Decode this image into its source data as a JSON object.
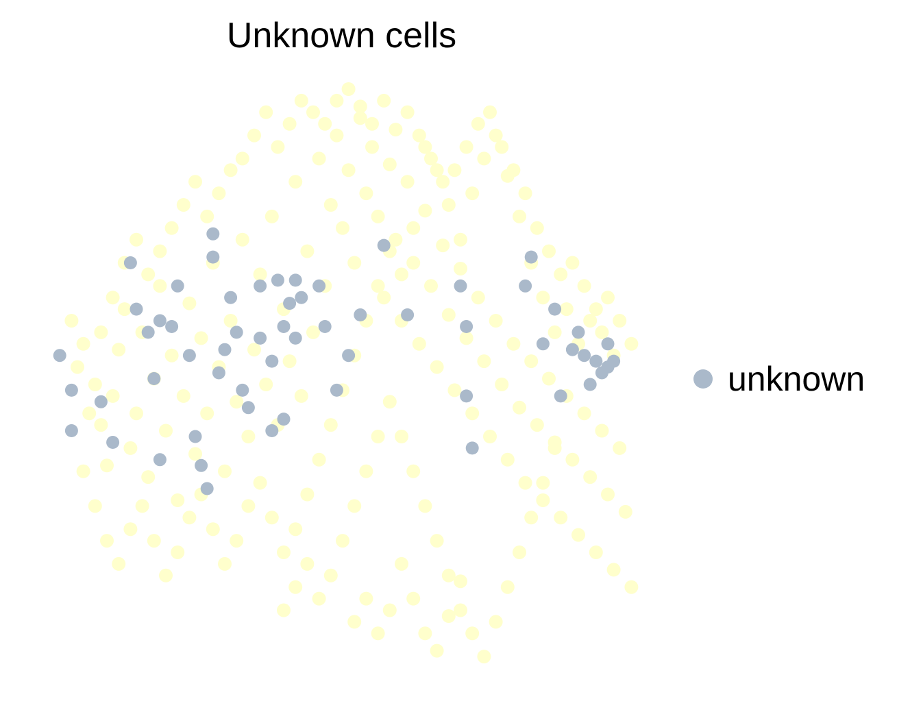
{
  "chart_data": {
    "type": "scatter",
    "title": "Unknown cells",
    "xlabel": "",
    "ylabel": "",
    "axes_visible": false,
    "grid": false,
    "legend_position": "right",
    "xlim": [
      0,
      100
    ],
    "ylim": [
      0,
      100
    ],
    "background": {
      "name": "",
      "color": "#ffffcc",
      "points": [
        [
          5,
          52
        ],
        [
          8,
          49
        ],
        [
          6,
          56
        ],
        [
          9,
          42
        ],
        [
          4,
          60
        ],
        [
          11,
          47
        ],
        [
          12,
          55
        ],
        [
          14,
          38
        ],
        [
          10,
          35
        ],
        [
          13,
          62
        ],
        [
          15,
          44
        ],
        [
          16,
          58
        ],
        [
          18,
          50
        ],
        [
          17,
          33
        ],
        [
          19,
          66
        ],
        [
          20,
          41
        ],
        [
          21,
          54
        ],
        [
          22,
          29
        ],
        [
          23,
          47
        ],
        [
          24,
          63
        ],
        [
          25,
          37
        ],
        [
          26,
          57
        ],
        [
          27,
          44
        ],
        [
          28,
          70
        ],
        [
          29,
          52
        ],
        [
          30,
          34
        ],
        [
          31,
          60
        ],
        [
          32,
          46
        ],
        [
          33,
          74
        ],
        [
          34,
          40
        ],
        [
          35,
          55
        ],
        [
          36,
          68
        ],
        [
          37,
          49
        ],
        [
          38,
          78
        ],
        [
          39,
          42
        ],
        [
          40,
          62
        ],
        [
          41,
          53
        ],
        [
          42,
          84
        ],
        [
          43,
          47
        ],
        [
          44,
          72
        ],
        [
          45,
          58
        ],
        [
          46,
          88
        ],
        [
          47,
          66
        ],
        [
          48,
          80
        ],
        [
          49,
          92
        ],
        [
          50,
          76
        ],
        [
          51,
          86
        ],
        [
          52,
          70
        ],
        [
          53,
          95
        ],
        [
          54,
          82
        ],
        [
          55,
          90
        ],
        [
          56,
          78
        ],
        [
          57,
          64
        ],
        [
          58,
          87
        ],
        [
          59,
          74
        ],
        [
          60,
          60
        ],
        [
          61,
          84
        ],
        [
          62,
          70
        ],
        [
          63,
          56
        ],
        [
          64,
          79
        ],
        [
          65,
          66
        ],
        [
          66,
          52
        ],
        [
          67,
          73
        ],
        [
          68,
          61
        ],
        [
          69,
          48
        ],
        [
          70,
          69
        ],
        [
          71,
          57
        ],
        [
          72,
          44
        ],
        [
          73,
          64
        ],
        [
          74,
          53
        ],
        [
          75,
          40
        ],
        [
          76,
          60
        ],
        [
          77,
          49
        ],
        [
          78,
          36
        ],
        [
          79,
          56
        ],
        [
          80,
          45
        ],
        [
          81,
          32
        ],
        [
          82,
          53
        ],
        [
          83,
          42
        ],
        [
          84,
          29
        ],
        [
          85,
          50
        ],
        [
          86,
          39
        ],
        [
          87,
          26
        ],
        [
          88,
          47
        ],
        [
          89,
          36
        ],
        [
          90,
          23
        ],
        [
          91,
          44
        ],
        [
          92,
          33
        ],
        [
          93,
          20
        ],
        [
          94,
          41
        ],
        [
          95,
          30
        ],
        [
          96,
          17
        ],
        [
          97,
          38
        ],
        [
          98,
          27
        ],
        [
          99,
          14
        ],
        [
          72,
          82
        ],
        [
          74,
          88
        ],
        [
          76,
          92
        ],
        [
          78,
          85
        ],
        [
          80,
          78
        ],
        [
          82,
          70
        ],
        [
          84,
          64
        ],
        [
          86,
          58
        ],
        [
          88,
          62
        ],
        [
          90,
          56
        ],
        [
          92,
          60
        ],
        [
          94,
          58
        ],
        [
          96,
          54
        ],
        [
          70,
          74
        ],
        [
          68,
          80
        ],
        [
          66,
          86
        ],
        [
          64,
          90
        ],
        [
          62,
          76
        ],
        [
          60,
          68
        ],
        [
          58,
          72
        ],
        [
          56,
          66
        ],
        [
          54,
          60
        ],
        [
          52,
          54
        ],
        [
          50,
          48
        ],
        [
          48,
          42
        ],
        [
          46,
          36
        ],
        [
          44,
          30
        ],
        [
          42,
          24
        ],
        [
          40,
          20
        ],
        [
          38,
          26
        ],
        [
          36,
          32
        ],
        [
          34,
          28
        ],
        [
          32,
          22
        ],
        [
          30,
          18
        ],
        [
          28,
          24
        ],
        [
          26,
          30
        ],
        [
          24,
          26
        ],
        [
          22,
          20
        ],
        [
          20,
          16
        ],
        [
          18,
          22
        ],
        [
          16,
          28
        ],
        [
          14,
          24
        ],
        [
          12,
          18
        ],
        [
          10,
          22
        ],
        [
          8,
          28
        ],
        [
          6,
          34
        ],
        [
          7,
          44
        ],
        [
          9,
          58
        ],
        [
          11,
          64
        ],
        [
          13,
          70
        ],
        [
          15,
          74
        ],
        [
          17,
          68
        ],
        [
          19,
          72
        ],
        [
          21,
          76
        ],
        [
          23,
          80
        ],
        [
          25,
          84
        ],
        [
          27,
          78
        ],
        [
          29,
          82
        ],
        [
          31,
          86
        ],
        [
          33,
          88
        ],
        [
          35,
          92
        ],
        [
          37,
          96
        ],
        [
          39,
          90
        ],
        [
          41,
          94
        ],
        [
          43,
          98
        ],
        [
          45,
          96
        ],
        [
          47,
          94
        ],
        [
          49,
          98
        ],
        [
          51,
          100
        ],
        [
          53,
          97
        ],
        [
          55,
          94
        ],
        [
          57,
          98
        ],
        [
          59,
          93
        ],
        [
          61,
          96
        ],
        [
          63,
          92
        ],
        [
          65,
          88
        ],
        [
          67,
          84
        ],
        [
          69,
          86
        ],
        [
          71,
          90
        ],
        [
          73,
          94
        ],
        [
          75,
          96
        ],
        [
          77,
          90
        ],
        [
          79,
          86
        ],
        [
          81,
          82
        ],
        [
          83,
          76
        ],
        [
          85,
          72
        ],
        [
          87,
          68
        ],
        [
          89,
          70
        ],
        [
          91,
          66
        ],
        [
          93,
          62
        ],
        [
          95,
          64
        ],
        [
          97,
          60
        ],
        [
          99,
          56
        ],
        [
          60,
          40
        ],
        [
          62,
          34
        ],
        [
          64,
          28
        ],
        [
          66,
          22
        ],
        [
          68,
          16
        ],
        [
          70,
          10
        ],
        [
          72,
          6
        ],
        [
          74,
          2
        ],
        [
          76,
          8
        ],
        [
          78,
          14
        ],
        [
          80,
          20
        ],
        [
          82,
          26
        ],
        [
          84,
          32
        ],
        [
          86,
          38
        ],
        [
          58,
          46
        ],
        [
          56,
          40
        ],
        [
          54,
          34
        ],
        [
          52,
          28
        ],
        [
          50,
          22
        ],
        [
          48,
          16
        ],
        [
          46,
          12
        ],
        [
          44,
          18
        ],
        [
          42,
          14
        ],
        [
          40,
          10
        ],
        [
          60,
          18
        ],
        [
          62,
          12
        ],
        [
          64,
          6
        ],
        [
          66,
          3
        ],
        [
          68,
          9
        ],
        [
          70,
          15
        ],
        [
          58,
          10
        ],
        [
          56,
          6
        ],
        [
          54,
          12
        ],
        [
          52,
          8
        ]
      ]
    },
    "series": [
      {
        "name": "unknown",
        "color": "#aab9ca",
        "points": [
          [
            2,
            54
          ],
          [
            4,
            48
          ],
          [
            4,
            41
          ],
          [
            9,
            46
          ],
          [
            11,
            39
          ],
          [
            14,
            70
          ],
          [
            15,
            62
          ],
          [
            17,
            58
          ],
          [
            19,
            60
          ],
          [
            18,
            50
          ],
          [
            19,
            36
          ],
          [
            21,
            59
          ],
          [
            22,
            66
          ],
          [
            24,
            54
          ],
          [
            25,
            40
          ],
          [
            26,
            35
          ],
          [
            27,
            31
          ],
          [
            28,
            75
          ],
          [
            28,
            71
          ],
          [
            29,
            51
          ],
          [
            30,
            55
          ],
          [
            31,
            64
          ],
          [
            32,
            58
          ],
          [
            33,
            48
          ],
          [
            34,
            45
          ],
          [
            36,
            66
          ],
          [
            36,
            57
          ],
          [
            38,
            53
          ],
          [
            38,
            41
          ],
          [
            39,
            67
          ],
          [
            40,
            59
          ],
          [
            40,
            43
          ],
          [
            41,
            63
          ],
          [
            42,
            57
          ],
          [
            42,
            67
          ],
          [
            43,
            64
          ],
          [
            46,
            66
          ],
          [
            47,
            59
          ],
          [
            49,
            48
          ],
          [
            51,
            54
          ],
          [
            53,
            61
          ],
          [
            57,
            73
          ],
          [
            61,
            61
          ],
          [
            70,
            66
          ],
          [
            71,
            59
          ],
          [
            71,
            47
          ],
          [
            72,
            38
          ],
          [
            81,
            66
          ],
          [
            82,
            71
          ],
          [
            84,
            56
          ],
          [
            86,
            62
          ],
          [
            87,
            47
          ],
          [
            89,
            55
          ],
          [
            90,
            58
          ],
          [
            91,
            54
          ],
          [
            92,
            49
          ],
          [
            93,
            53
          ],
          [
            94,
            51
          ],
          [
            95,
            56
          ],
          [
            95,
            52
          ],
          [
            96,
            53
          ]
        ]
      }
    ]
  }
}
